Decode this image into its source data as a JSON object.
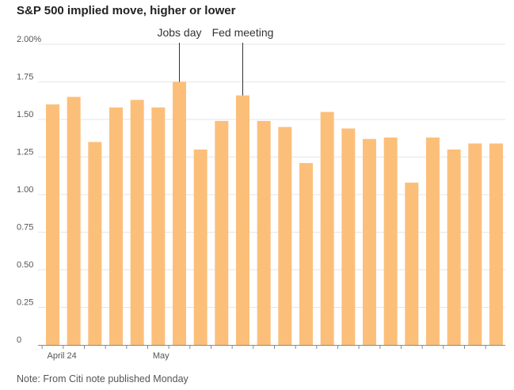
{
  "chart_data": {
    "type": "bar",
    "title": "S&P 500 implied move, higher or lower",
    "xlabel": "",
    "ylabel": "",
    "note": "Note: From Citi note published Monday",
    "ylim": [
      0,
      2.0
    ],
    "y_ticks": [
      0,
      0.25,
      0.5,
      0.75,
      1.0,
      1.25,
      1.5,
      1.75,
      2.0
    ],
    "y_tick_labels": [
      "0",
      "0.25",
      "0.50",
      "0.75",
      "1.00",
      "1.25",
      "1.50",
      "1.75",
      "2.00%"
    ],
    "x_tick_labels": [
      {
        "label": "April 24",
        "index": 0
      },
      {
        "label": "May",
        "index": 5
      }
    ],
    "values": [
      1.6,
      1.65,
      1.35,
      1.58,
      1.63,
      1.58,
      1.75,
      1.3,
      1.49,
      1.66,
      1.49,
      1.45,
      1.21,
      1.55,
      1.44,
      1.37,
      1.38,
      1.08,
      1.38,
      1.3,
      1.34,
      1.34
    ],
    "annotations": [
      {
        "label": "Jobs day",
        "index": 6
      },
      {
        "label": "Fed meeting",
        "index": 9
      }
    ],
    "bar_color": "#fcbf7a",
    "gridline_color": "#e6e6e6",
    "axis_color": "#888888",
    "grid": true
  }
}
